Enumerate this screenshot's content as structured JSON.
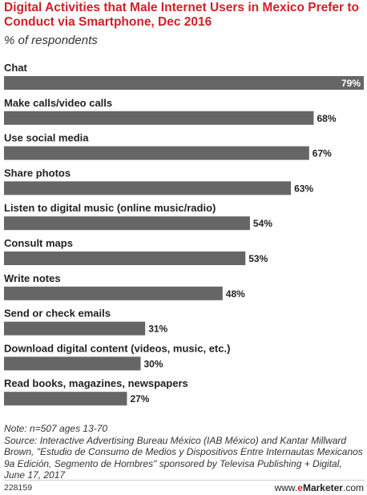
{
  "title": "Digital Activities that Male Internet Users in Mexico Prefer to Conduct via Smartphone, Dec 2016",
  "subtitle": "% of respondents",
  "note": "Note: n=507 ages 13-70",
  "source": "Source: Interactive Advertising Bureau México (IAB México) and Kantar Millward Brown, \"Estudio de Consumo de Medios y Dispositivos Entre Internautas Mexicanos 9a Edición, Segmento de Hombres\" sponsored by Televisa Publishing + Digital, June 17, 2017",
  "chart_id": "228159",
  "brand": {
    "prefix": "www.",
    "e": "e",
    "name": "Marketer",
    "suffix": ".com"
  },
  "colors": {
    "bar": "#666666",
    "title": "#d21f27",
    "label_inside": "#ffffff",
    "label_outside": "#222222"
  },
  "chart_data": {
    "type": "bar",
    "orientation": "horizontal",
    "categories": [
      "Chat",
      "Make calls/video calls",
      "Use social media",
      "Share photos",
      "Listen to digital music (online music/radio)",
      "Consult maps",
      "Write notes",
      "Send or check emails",
      "Download digital content (videos, music, etc.)",
      "Read books, magazines, newspapers"
    ],
    "values": [
      79,
      68,
      67,
      63,
      54,
      53,
      48,
      31,
      30,
      27
    ],
    "value_labels": [
      "79%",
      "68%",
      "67%",
      "63%",
      "54%",
      "53%",
      "48%",
      "31%",
      "30%",
      "27%"
    ],
    "xlim": [
      0,
      79
    ],
    "grid": false,
    "legend": "none"
  }
}
